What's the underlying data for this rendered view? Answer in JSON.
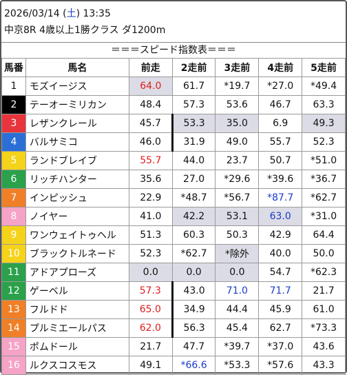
{
  "header": {
    "date": "2026/03/14 (",
    "weekday": "土",
    "time_suffix": ") 13:35",
    "race": "中京8R 4歳以上1勝クラス ダ1200m",
    "banner": "＝＝＝スピード指数表＝＝＝"
  },
  "columns": [
    "馬番",
    "馬名",
    "前走",
    "2走前",
    "3走前",
    "4走前",
    "5走前"
  ],
  "colors": {
    "gate1": "#ffffff",
    "gate2": "#000000",
    "gate3": "#e8343c",
    "gate4": "#2b6fd6",
    "gate5": "#f4d31a",
    "gate6": "#2aa14a",
    "gate7": "#f07f27",
    "gate8": "#f5a3c6",
    "highlight_gray": "#dcdce6",
    "red": "#e21c1c",
    "blue": "#1a3cc8"
  },
  "rows": [
    {
      "no": "1",
      "name": "モズイージス",
      "v": [
        "64.0",
        "61.7",
        "*19.7",
        "*27.0",
        "*49.4"
      ]
    },
    {
      "no": "2",
      "name": "テーオーミリカン",
      "v": [
        "48.4",
        "57.3",
        "53.6",
        "46.7",
        "63.3"
      ]
    },
    {
      "no": "3",
      "name": "レザンクレール",
      "v": [
        "45.7",
        "53.3",
        "35.0",
        "6.9",
        "49.3"
      ]
    },
    {
      "no": "4",
      "name": "バルサミコ",
      "v": [
        "46.0",
        "31.9",
        "49.0",
        "55.7",
        "52.3"
      ]
    },
    {
      "no": "5",
      "name": "ランドブレイブ",
      "v": [
        "55.7",
        "44.0",
        "23.7",
        "50.7",
        "*51.0"
      ]
    },
    {
      "no": "6",
      "name": "リッチハンター",
      "v": [
        "35.6",
        "27.0",
        "*29.6",
        "*39.6",
        "*36.7"
      ]
    },
    {
      "no": "7",
      "name": "インピッシュ",
      "v": [
        "22.9",
        "*48.7",
        "*56.7",
        "*87.7",
        "*62.7"
      ]
    },
    {
      "no": "8",
      "name": "ノイヤー",
      "v": [
        "41.0",
        "42.2",
        "53.1",
        "63.0",
        "*31.0"
      ]
    },
    {
      "no": "9",
      "name": "ワンウェイトゥヘル",
      "v": [
        "51.3",
        "60.3",
        "50.3",
        "42.9",
        "64.4"
      ]
    },
    {
      "no": "10",
      "name": "ブラックトルネード",
      "v": [
        "52.3",
        "*62.7",
        "*除外",
        "40.0",
        "50.0"
      ]
    },
    {
      "no": "11",
      "name": "アドアプローズ",
      "v": [
        "0.0",
        "0.0",
        "0.0",
        "54.7",
        "*62.3"
      ]
    },
    {
      "no": "12",
      "name": "ゲーベル",
      "v": [
        "57.3",
        "43.0",
        "71.0",
        "71.7",
        "21.7"
      ]
    },
    {
      "no": "13",
      "name": "フルドド",
      "v": [
        "65.0",
        "34.9",
        "44.4",
        "45.9",
        "61.0"
      ]
    },
    {
      "no": "14",
      "name": "プルミエールパス",
      "v": [
        "62.0",
        "56.3",
        "45.4",
        "62.7",
        "*73.3"
      ]
    },
    {
      "no": "15",
      "name": "ポムドール",
      "v": [
        "21.7",
        "47.7",
        "*39.7",
        "*37.0",
        "43.6"
      ]
    },
    {
      "no": "16",
      "name": "ルクスコスモス",
      "v": [
        "49.1",
        "*66.6",
        "*53.3",
        "*57.6",
        "43.3"
      ]
    }
  ]
}
